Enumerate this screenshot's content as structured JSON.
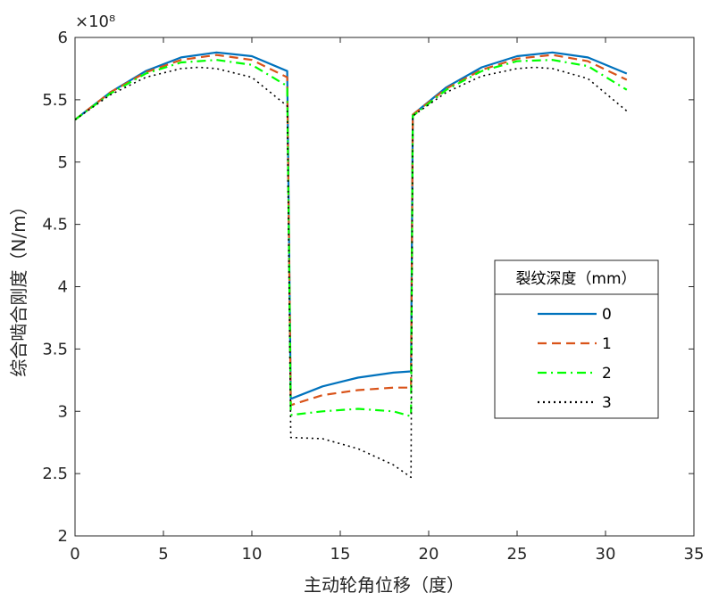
{
  "chart_data": {
    "type": "line",
    "title": "",
    "xlabel": "主动轮角位移（度）",
    "ylabel": "综合啮合刚度（N/m）",
    "xlim": [
      0,
      35
    ],
    "ylim": [
      2,
      6
    ],
    "x_ticks": [
      "0",
      "5",
      "10",
      "15",
      "20",
      "25",
      "30",
      "35"
    ],
    "y_ticks": [
      "2",
      "2.5",
      "3",
      "3.5",
      "4",
      "4.5",
      "5",
      "5.5",
      "6"
    ],
    "y_exponent_label": "×10⁸",
    "grid": false,
    "legend": {
      "title": "裂纹深度（mm）",
      "placement": "right"
    },
    "series": [
      {
        "name": "0",
        "color": "#0072BD",
        "style": "solid",
        "x": [
          0,
          2,
          4,
          6,
          8,
          10,
          12,
          12.2,
          14,
          16,
          18,
          19,
          19.1,
          21,
          23,
          25,
          27,
          29,
          31.2
        ],
        "y": [
          5.34,
          5.56,
          5.73,
          5.84,
          5.88,
          5.85,
          5.73,
          3.1,
          3.2,
          3.27,
          3.31,
          3.32,
          5.38,
          5.6,
          5.76,
          5.85,
          5.88,
          5.84,
          5.71
        ]
      },
      {
        "name": "1",
        "color": "#D95319",
        "style": "dash",
        "x": [
          0,
          2,
          4,
          6,
          8,
          10,
          12,
          12.2,
          14,
          16,
          18,
          19,
          19.1,
          21,
          23,
          25,
          27,
          29,
          31.2
        ],
        "y": [
          5.34,
          5.56,
          5.72,
          5.82,
          5.86,
          5.82,
          5.68,
          3.05,
          3.13,
          3.17,
          3.19,
          3.19,
          5.38,
          5.59,
          5.74,
          5.83,
          5.86,
          5.81,
          5.66
        ]
      },
      {
        "name": "2",
        "color": "#00FF00",
        "style": "dashdot",
        "x": [
          0,
          2,
          4,
          6,
          8,
          10,
          12,
          12.2,
          14,
          16,
          18,
          19,
          19.1,
          21,
          23,
          25,
          27,
          29,
          31.2
        ],
        "y": [
          5.34,
          5.55,
          5.71,
          5.8,
          5.82,
          5.78,
          5.61,
          2.97,
          3.0,
          3.02,
          3.0,
          2.96,
          5.37,
          5.58,
          5.73,
          5.81,
          5.82,
          5.77,
          5.58
        ]
      },
      {
        "name": "3",
        "color": "#000000",
        "style": "dot",
        "x": [
          0,
          2,
          4,
          6,
          7,
          8,
          10,
          12,
          12.2,
          14,
          16,
          18,
          19,
          19.1,
          21,
          23,
          25,
          26,
          27,
          29,
          31.2
        ],
        "y": [
          5.34,
          5.54,
          5.68,
          5.75,
          5.76,
          5.75,
          5.68,
          5.45,
          2.79,
          2.78,
          2.7,
          2.57,
          2.47,
          5.37,
          5.56,
          5.69,
          5.75,
          5.76,
          5.75,
          5.67,
          5.41
        ]
      }
    ]
  }
}
